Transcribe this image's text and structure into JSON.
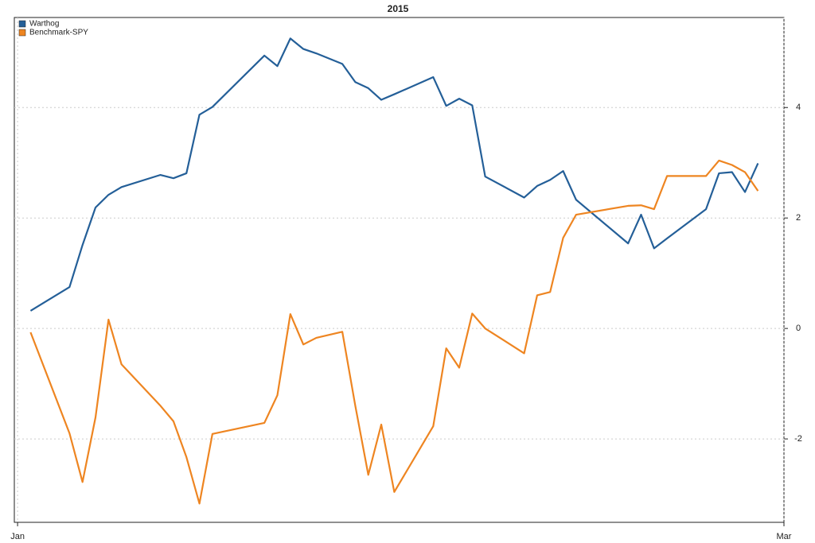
{
  "chart_data": {
    "type": "line",
    "title": "2015",
    "x": [
      1,
      4,
      5,
      6,
      7,
      8,
      11,
      12,
      13,
      14,
      15,
      19,
      20,
      21,
      22,
      23,
      25,
      26,
      27,
      28,
      29,
      32,
      33,
      34,
      35,
      36,
      39,
      40,
      41,
      42,
      43,
      47,
      48,
      49,
      50,
      53,
      54,
      55,
      56,
      57
    ],
    "series": [
      {
        "name": "Warthog",
        "color": "#245f98",
        "values": [
          0.32,
          0.75,
          1.51,
          2.19,
          2.42,
          2.56,
          2.78,
          2.72,
          2.81,
          3.87,
          4.01,
          4.94,
          4.75,
          5.25,
          5.06,
          4.98,
          4.79,
          4.46,
          4.35,
          4.14,
          4.24,
          4.55,
          4.03,
          4.16,
          4.04,
          2.75,
          2.37,
          2.58,
          2.69,
          2.85,
          2.33,
          1.54,
          2.06,
          1.45,
          1.63,
          2.16,
          2.81,
          2.83,
          2.47,
          2.99
        ]
      },
      {
        "name": "Benchmark-SPY",
        "color": "#ee8521",
        "values": [
          -0.07,
          -1.9,
          -2.78,
          -1.61,
          0.16,
          -0.65,
          -1.4,
          -1.68,
          -2.33,
          -3.17,
          -1.91,
          -1.71,
          -1.21,
          0.26,
          -0.29,
          -0.17,
          -0.06,
          -1.4,
          -2.65,
          -1.74,
          -2.96,
          -1.77,
          -0.36,
          -0.71,
          0.27,
          0.0,
          -0.45,
          0.6,
          0.66,
          1.64,
          2.06,
          2.22,
          2.23,
          2.16,
          2.76,
          2.76,
          3.04,
          2.96,
          2.83,
          2.49
        ]
      }
    ],
    "xlim": [
      -0.25,
      59
    ],
    "xticks": [
      {
        "value": 0,
        "label": "Jan"
      },
      {
        "value": 59,
        "label": "Mar"
      }
    ],
    "ylim": [
      -3.51,
      5.63
    ],
    "yticks": [
      -2,
      0,
      2,
      4
    ],
    "grid": true,
    "legend": "topleft"
  }
}
